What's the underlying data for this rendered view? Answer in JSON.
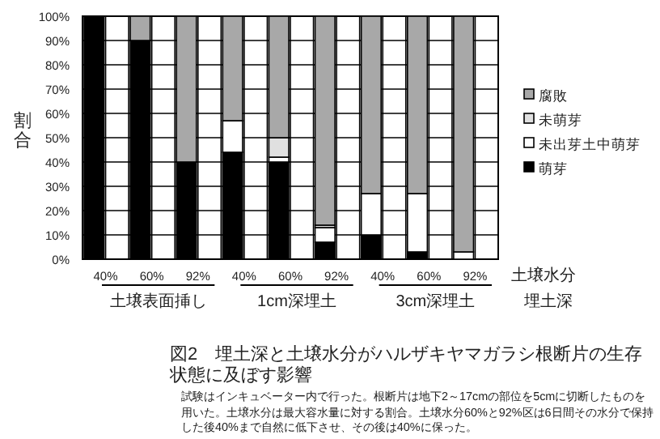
{
  "chart_data": {
    "type": "bar",
    "stacked": true,
    "title": "図2　埋土深と土壌水分がハルザキヤマガラシ根断片の生存状態に及ぼす影響",
    "xlabel": "土壌水分",
    "ylabel": "割合",
    "categories": [
      "40%",
      "60%",
      "92%",
      "40%",
      "60%",
      "92%",
      "40%",
      "60%",
      "92%"
    ],
    "series": [
      {
        "name": "萌芽",
        "color": "#000000",
        "values": [
          100,
          90,
          40,
          44,
          40,
          7,
          10,
          3,
          0
        ]
      },
      {
        "name": "未出芽土中萌芽",
        "color": "#ffffff",
        "values": [
          0,
          0,
          0,
          13,
          2,
          6,
          17,
          24,
          3
        ]
      },
      {
        "name": "未萌芽",
        "color": "#e0e0e0",
        "values": [
          0,
          0,
          0,
          0,
          8,
          1,
          0,
          0,
          0
        ]
      },
      {
        "name": "腐敗",
        "color": "#a8a8a8",
        "values": [
          0,
          10,
          60,
          43,
          50,
          86,
          73,
          73,
          97
        ]
      }
    ],
    "ylim": [
      0,
      100
    ],
    "yticks": [
      {
        "value": 0,
        "label": "0%"
      },
      {
        "value": 10,
        "label": "10%"
      },
      {
        "value": 20,
        "label": "20%"
      },
      {
        "value": 30,
        "label": "30%"
      },
      {
        "value": 40,
        "label": "40%"
      },
      {
        "value": 50,
        "label": "50%"
      },
      {
        "value": 60,
        "label": "60%"
      },
      {
        "value": 70,
        "label": "70%"
      },
      {
        "value": 80,
        "label": "80%"
      },
      {
        "value": 90,
        "label": "90%"
      },
      {
        "value": 100,
        "label": "100%"
      }
    ],
    "grid": true,
    "legend": "right",
    "annotations": [
      "土壌表面挿し",
      "1cm深埋土",
      "3cm深埋土",
      "埋土深",
      "試験はインキュベーター内で行った。根断片は地下2～17cmの部位を5cmに切断したものを用いた。土壌水分は最大容水量に対する割合。土壌水分60%と92%区は6日間その水分で保持した後40%まで自然に低下させ、その後は40%に保った。"
    ]
  }
}
